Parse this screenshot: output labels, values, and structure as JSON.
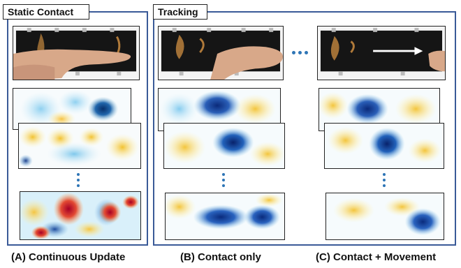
{
  "panels": {
    "static": {
      "title": "Static Contact"
    },
    "tracking": {
      "title": "Tracking"
    }
  },
  "captions": {
    "a": "(A) Continuous Update",
    "b": "(B) Contact only",
    "c": "(C) Contact + Movement"
  },
  "colors": {
    "panel_border": "#3a5a98",
    "ellipsis": "#2e75b6",
    "photo_bg": "#1a1a1a",
    "skin": "#d8a889"
  },
  "icons": {
    "continuation": "vertical-ellipsis-icon",
    "sequence": "horizontal-ellipsis-icon",
    "motion": "right-arrow-icon"
  }
}
